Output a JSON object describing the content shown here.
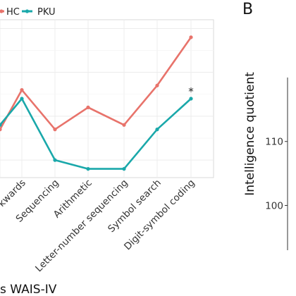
{
  "chart_data": [
    {
      "type": "line",
      "title": "",
      "xlabel": "s WAIS-IV",
      "ylabel": "",
      "categories": [
        "",
        "kwards",
        "Sequencing",
        "Arithmetic",
        "Letter-number sequencing",
        "Symbol search",
        "Digit-symbol coding"
      ],
      "series": [
        {
          "name": "HC",
          "color": "#e8736b",
          "values": [
            9.7,
            10.6,
            9.7,
            10.2,
            9.8,
            10.7,
            11.8
          ]
        },
        {
          "name": "PKU",
          "color": "#1aa8aa",
          "values": [
            9.8,
            10.4,
            9.0,
            8.8,
            8.8,
            9.7,
            10.4
          ]
        }
      ],
      "ylim": [
        8.6,
        12.2
      ],
      "grid": true,
      "legend": "top-left",
      "annotations": [
        {
          "category": "Digit-symbol coding",
          "text": "*"
        }
      ]
    },
    {
      "type": "line",
      "panel_label": "B",
      "title": "",
      "xlabel": "",
      "ylabel": "Intelligence quotient",
      "yticks": [
        100,
        110
      ],
      "ylim": [
        93,
        120
      ],
      "series": []
    }
  ]
}
